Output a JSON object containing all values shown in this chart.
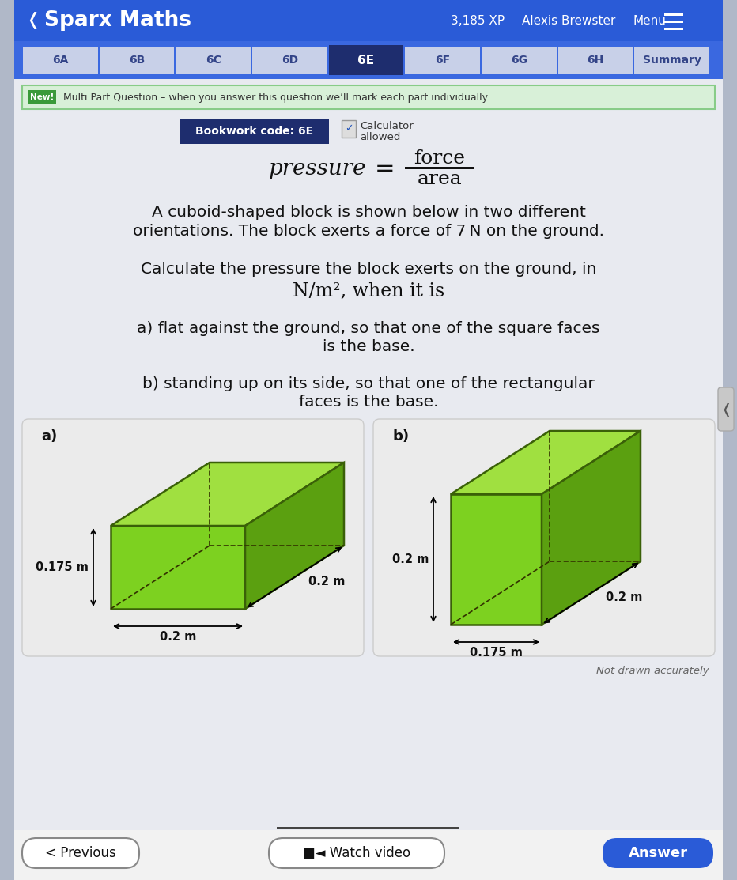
{
  "outer_bg": "#b0b8c8",
  "header_bg": "#2a5bd7",
  "content_bg": "#e8eaf0",
  "box_bg": "#f0f0f0",
  "header_text": "Sparx Maths",
  "header_xp": "3,185 XP",
  "header_name": "Alexis Brewster",
  "header_menu": "Menu",
  "tabs": [
    "6A",
    "6B",
    "6C",
    "6D",
    "6E",
    "6F",
    "6G",
    "6H",
    "Summary"
  ],
  "active_tab": "6E",
  "active_tab_bg": "#1e2d6e",
  "tab_bg": "#c8d0e8",
  "tab_text_color": "#334488",
  "new_badge_bg": "#3a9a3a",
  "new_banner_bg": "#d8f0d8",
  "new_banner_border": "#88cc88",
  "new_banner_text": "Multi Part Question – when you answer this question we’ll mark each part individually",
  "bookwork_bg": "#1e2d6e",
  "bookwork_text": "Bookwork code: 6E",
  "not_drawn": "Not drawn accurately",
  "btn_prev": "< Previous",
  "btn_video": "■◄ Watch video",
  "btn_answer": "Answer",
  "green_front": "#7dd120",
  "green_side": "#5ba010",
  "green_top": "#a0e040",
  "edge_color": "#3a6008",
  "text_color": "#111111",
  "gray_text": "#666666",
  "white": "#ffffff",
  "tab_header_bg": "#3a68e0"
}
